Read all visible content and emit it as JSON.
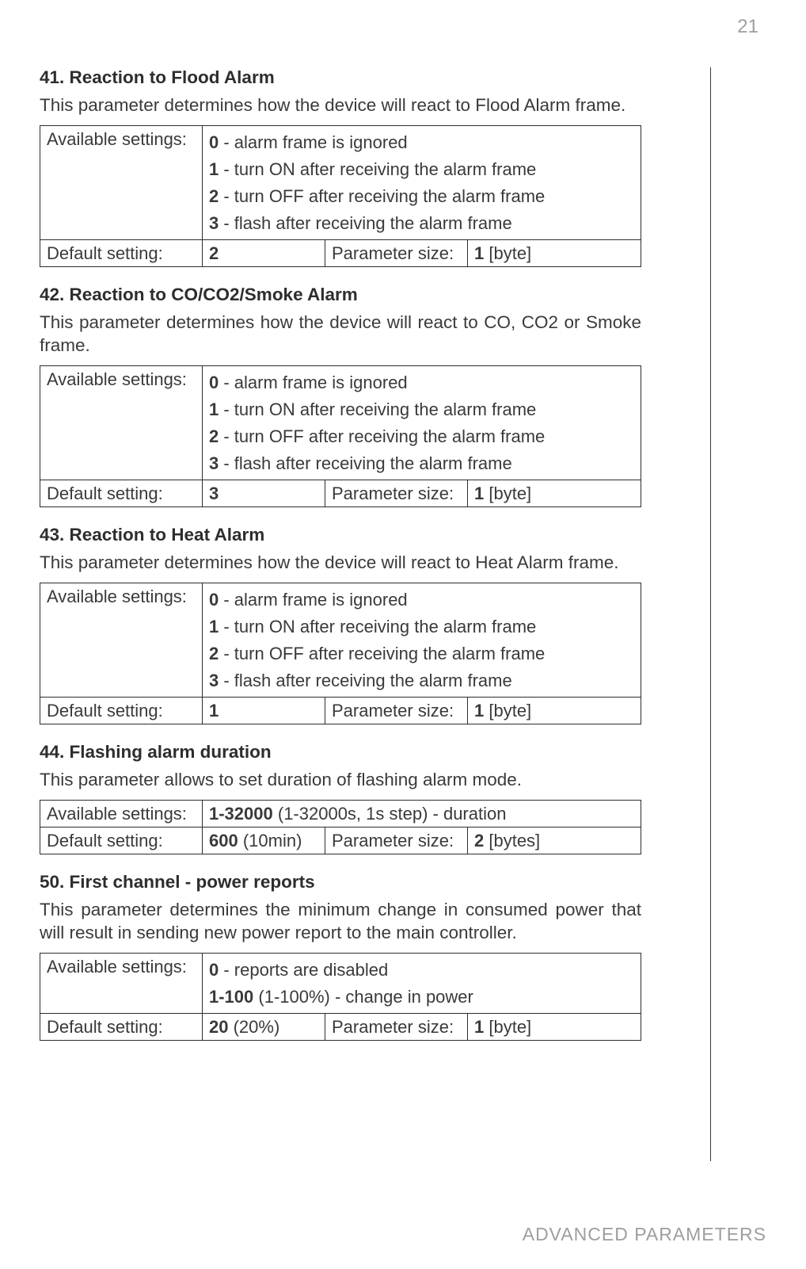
{
  "page_number": "21",
  "footer": "ADVANCED PARAMETERS",
  "params": {
    "p41": {
      "title": "41. Reaction to Flood Alarm",
      "desc": "This parameter determines how the device will react to Flood Alarm frame.",
      "avail_label": "Available settings:",
      "settings": [
        {
          "val": "0",
          "txt": " - alarm frame is ignored"
        },
        {
          "val": "1",
          "txt": " - turn ON after receiving the alarm frame"
        },
        {
          "val": "2",
          "txt": " - turn OFF after receiving the alarm frame"
        },
        {
          "val": "3",
          "txt": " - flash after receiving the alarm frame"
        }
      ],
      "default_label": "Default setting:",
      "default_value": "2",
      "psize_label": "Parameter size:",
      "psize_val": "1",
      "psize_unit": " [byte]"
    },
    "p42": {
      "title": "42. Reaction to CO/CO2/Smoke Alarm",
      "desc": "This parameter determines how the device will react to CO, CO2 or Smoke frame.",
      "avail_label": "Available settings:",
      "settings": [
        {
          "val": "0",
          "txt": " - alarm frame is ignored"
        },
        {
          "val": "1",
          "txt": " - turn ON after receiving the alarm frame"
        },
        {
          "val": "2",
          "txt": " - turn OFF after receiving the alarm frame"
        },
        {
          "val": "3",
          "txt": " - flash after receiving the alarm frame"
        }
      ],
      "default_label": "Default setting:",
      "default_value": "3",
      "psize_label": "Parameter size:",
      "psize_val": "1",
      "psize_unit": " [byte]"
    },
    "p43": {
      "title": "43. Reaction to Heat Alarm",
      "desc": "This parameter determines how the device will react to Heat Alarm frame.",
      "avail_label": "Available settings:",
      "settings": [
        {
          "val": "0",
          "txt": " - alarm frame is ignored"
        },
        {
          "val": "1",
          "txt": " - turn ON after receiving the alarm frame"
        },
        {
          "val": "2",
          "txt": " - turn OFF after receiving the alarm frame"
        },
        {
          "val": "3",
          "txt": " - flash after receiving the alarm frame"
        }
      ],
      "default_label": "Default setting:",
      "default_value": "1",
      "psize_label": "Parameter size:",
      "psize_val": "1",
      "psize_unit": " [byte]"
    },
    "p44": {
      "title": "44. Flashing alarm duration",
      "desc": "This parameter allows to set duration of flashing alarm mode.",
      "avail_label": "Available settings:",
      "settings_single_val": "1-32000",
      "settings_single_txt": " (1-32000s, 1s step) - duration",
      "default_label": "Default setting:",
      "default_value": "600",
      "default_extra": " (10min)",
      "psize_label": "Parameter size:",
      "psize_val": "2",
      "psize_unit": " [bytes]"
    },
    "p50": {
      "title": "50. First channel - power reports",
      "desc": "This parameter determines the minimum change in consumed power that will result in sending new power report to the main controller.",
      "avail_label": "Available settings:",
      "settings": [
        {
          "val": "0",
          "txt": " - reports are disabled"
        },
        {
          "val": "1-100",
          "txt": " (1-100%) - change in power"
        }
      ],
      "default_label": "Default setting:",
      "default_value": "20",
      "default_extra": " (20%)",
      "psize_label": "Parameter size:",
      "psize_val": "1",
      "psize_unit": " [byte]"
    }
  }
}
